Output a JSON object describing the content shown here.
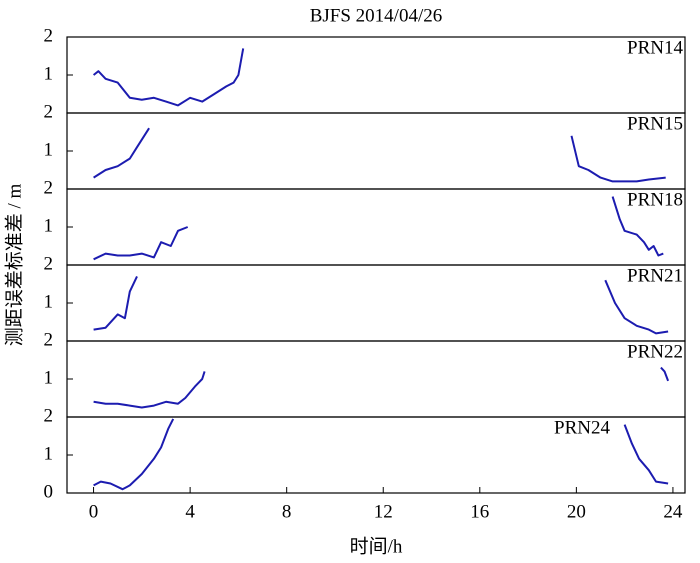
{
  "chart_data": {
    "type": "line",
    "title": "BJFS  2014/04/26",
    "xlabel": "时间/h",
    "ylabel": "测距误差标准差 / m",
    "xlim": [
      -1.1,
      24.5
    ],
    "xticks": [
      0,
      4,
      8,
      12,
      16,
      20,
      24
    ],
    "ylim": [
      0,
      2
    ],
    "yticks": [
      0,
      1,
      2
    ],
    "series": [
      {
        "name": "PRN14",
        "color": "#1c1cb0",
        "x": [
          0,
          0.2,
          0.5,
          1,
          1.5,
          2,
          2.5,
          3,
          3.5,
          4,
          4.5,
          5,
          5.5,
          5.8,
          6,
          6.2
        ],
        "values": [
          1.0,
          1.1,
          0.9,
          0.8,
          0.4,
          0.35,
          0.4,
          0.3,
          0.2,
          0.4,
          0.3,
          0.5,
          0.7,
          0.8,
          1.0,
          1.7
        ]
      },
      {
        "name": "PRN15",
        "color": "#1c1cb0",
        "x": [
          0,
          0.5,
          1,
          1.5,
          1.8,
          2.3,
          11,
          19.8,
          20.1,
          20.5,
          21,
          21.5,
          22,
          22.5,
          23,
          23.7
        ],
        "values": [
          0.3,
          0.5,
          0.6,
          0.8,
          1.1,
          1.6,
          null,
          1.4,
          0.6,
          0.5,
          0.3,
          0.2,
          0.2,
          0.2,
          0.25,
          0.3
        ]
      },
      {
        "name": "PRN18",
        "color": "#1c1cb0",
        "x": [
          0,
          0.5,
          1,
          1.5,
          2,
          2.5,
          2.8,
          3.2,
          3.5,
          3.9,
          12,
          21.5,
          21.8,
          22,
          22.5,
          22.8,
          23,
          23.2,
          23.4,
          23.6
        ],
        "values": [
          0.15,
          0.3,
          0.25,
          0.25,
          0.3,
          0.2,
          0.6,
          0.5,
          0.9,
          1.0,
          null,
          1.8,
          1.2,
          0.9,
          0.8,
          0.6,
          0.4,
          0.5,
          0.25,
          0.3
        ]
      },
      {
        "name": "PRN21",
        "color": "#1c1cb0",
        "x": [
          0,
          0.5,
          1,
          1.3,
          1.5,
          1.8,
          11,
          21.2,
          21.6,
          22,
          22.5,
          23,
          23.3,
          23.8
        ],
        "values": [
          0.3,
          0.35,
          0.7,
          0.6,
          1.3,
          1.7,
          null,
          1.6,
          1.0,
          0.6,
          0.4,
          0.3,
          0.2,
          0.25
        ]
      },
      {
        "name": "PRN22",
        "color": "#1c1cb0",
        "x": [
          0,
          0.5,
          1,
          1.5,
          2,
          2.5,
          3,
          3.5,
          3.8,
          4.2,
          4.5,
          4.6,
          14,
          23.5,
          23.65,
          23.8
        ],
        "values": [
          0.4,
          0.35,
          0.35,
          0.3,
          0.25,
          0.3,
          0.4,
          0.35,
          0.5,
          0.8,
          1.0,
          1.2,
          null,
          1.3,
          1.2,
          0.95
        ]
      },
      {
        "name": "PRN24",
        "color": "#1c1cb0",
        "x": [
          0,
          0.3,
          0.7,
          1.2,
          1.5,
          2,
          2.5,
          2.8,
          3.1,
          3.3,
          12,
          22,
          22.3,
          22.6,
          23,
          23.3,
          23.8
        ],
        "values": [
          0.2,
          0.3,
          0.25,
          0.1,
          0.2,
          0.5,
          0.9,
          1.2,
          1.7,
          1.95,
          null,
          1.8,
          1.3,
          0.9,
          0.6,
          0.3,
          0.25
        ]
      }
    ]
  }
}
